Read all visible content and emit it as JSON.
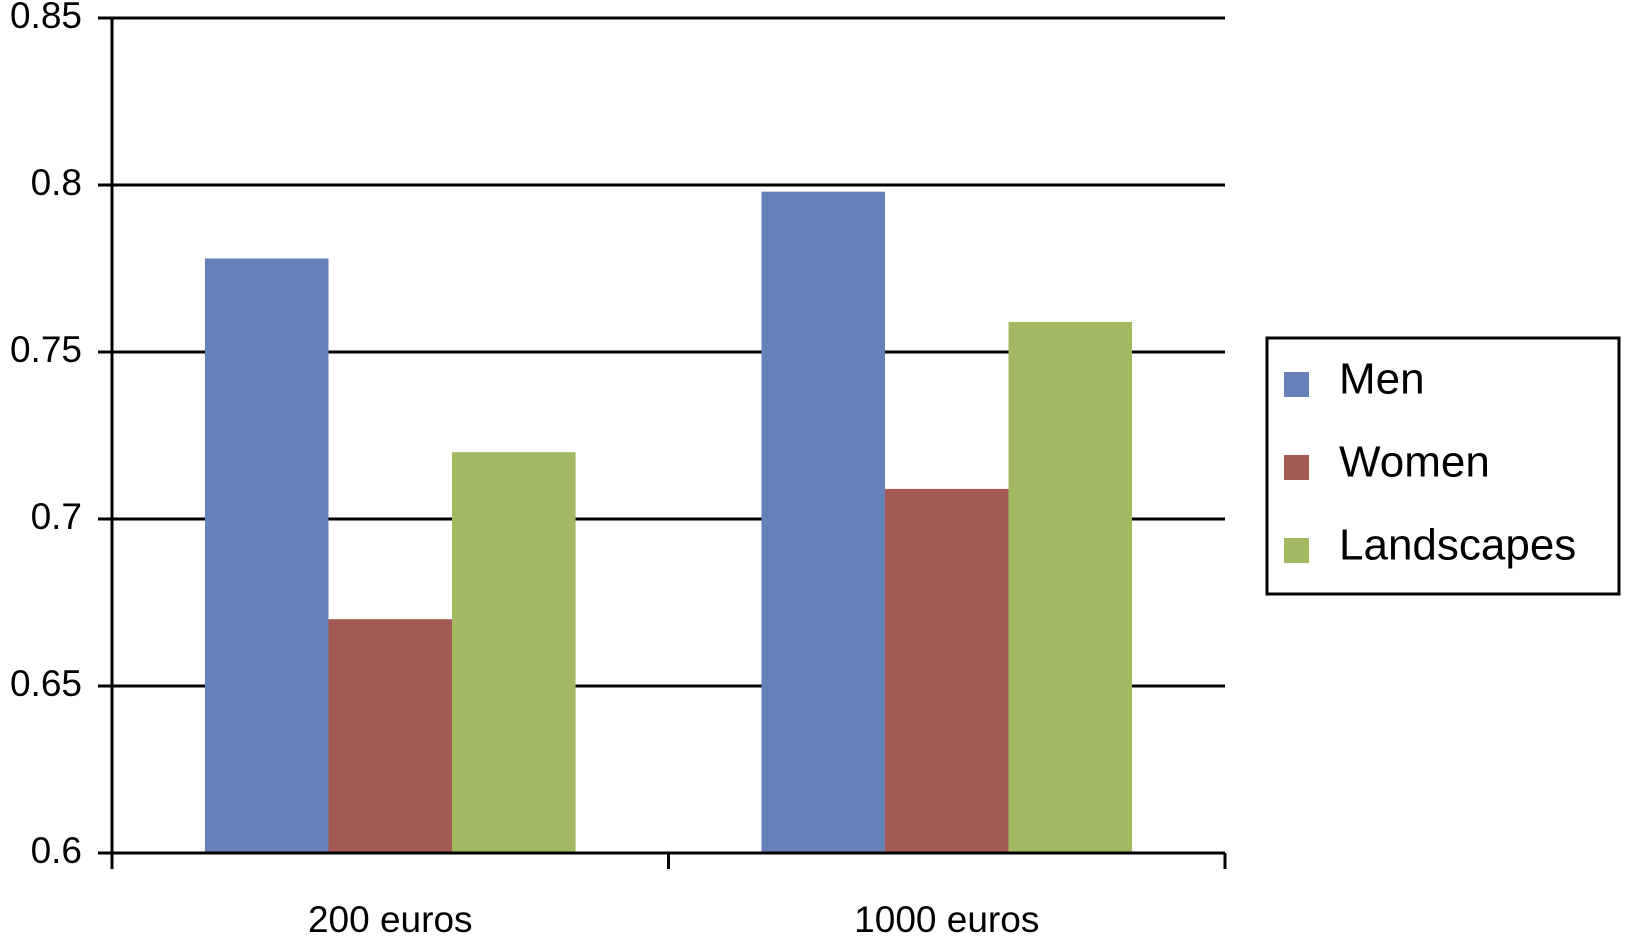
{
  "chart_data": {
    "type": "bar",
    "categories": [
      "200 euros",
      "1000 euros"
    ],
    "series": [
      {
        "name": "Men",
        "color": "#6680b9",
        "values": [
          0.778,
          0.798
        ]
      },
      {
        "name": "Women",
        "color": "#a45a52",
        "values": [
          0.67,
          0.709
        ]
      },
      {
        "name": "Landscapes",
        "color": "#a2b962",
        "values": [
          0.72,
          0.759
        ]
      }
    ],
    "ylim": [
      0.6,
      0.85
    ],
    "yticks": [
      0.6,
      0.65,
      0.7,
      0.75,
      0.8,
      0.85
    ],
    "grid": true,
    "legend": "right"
  }
}
